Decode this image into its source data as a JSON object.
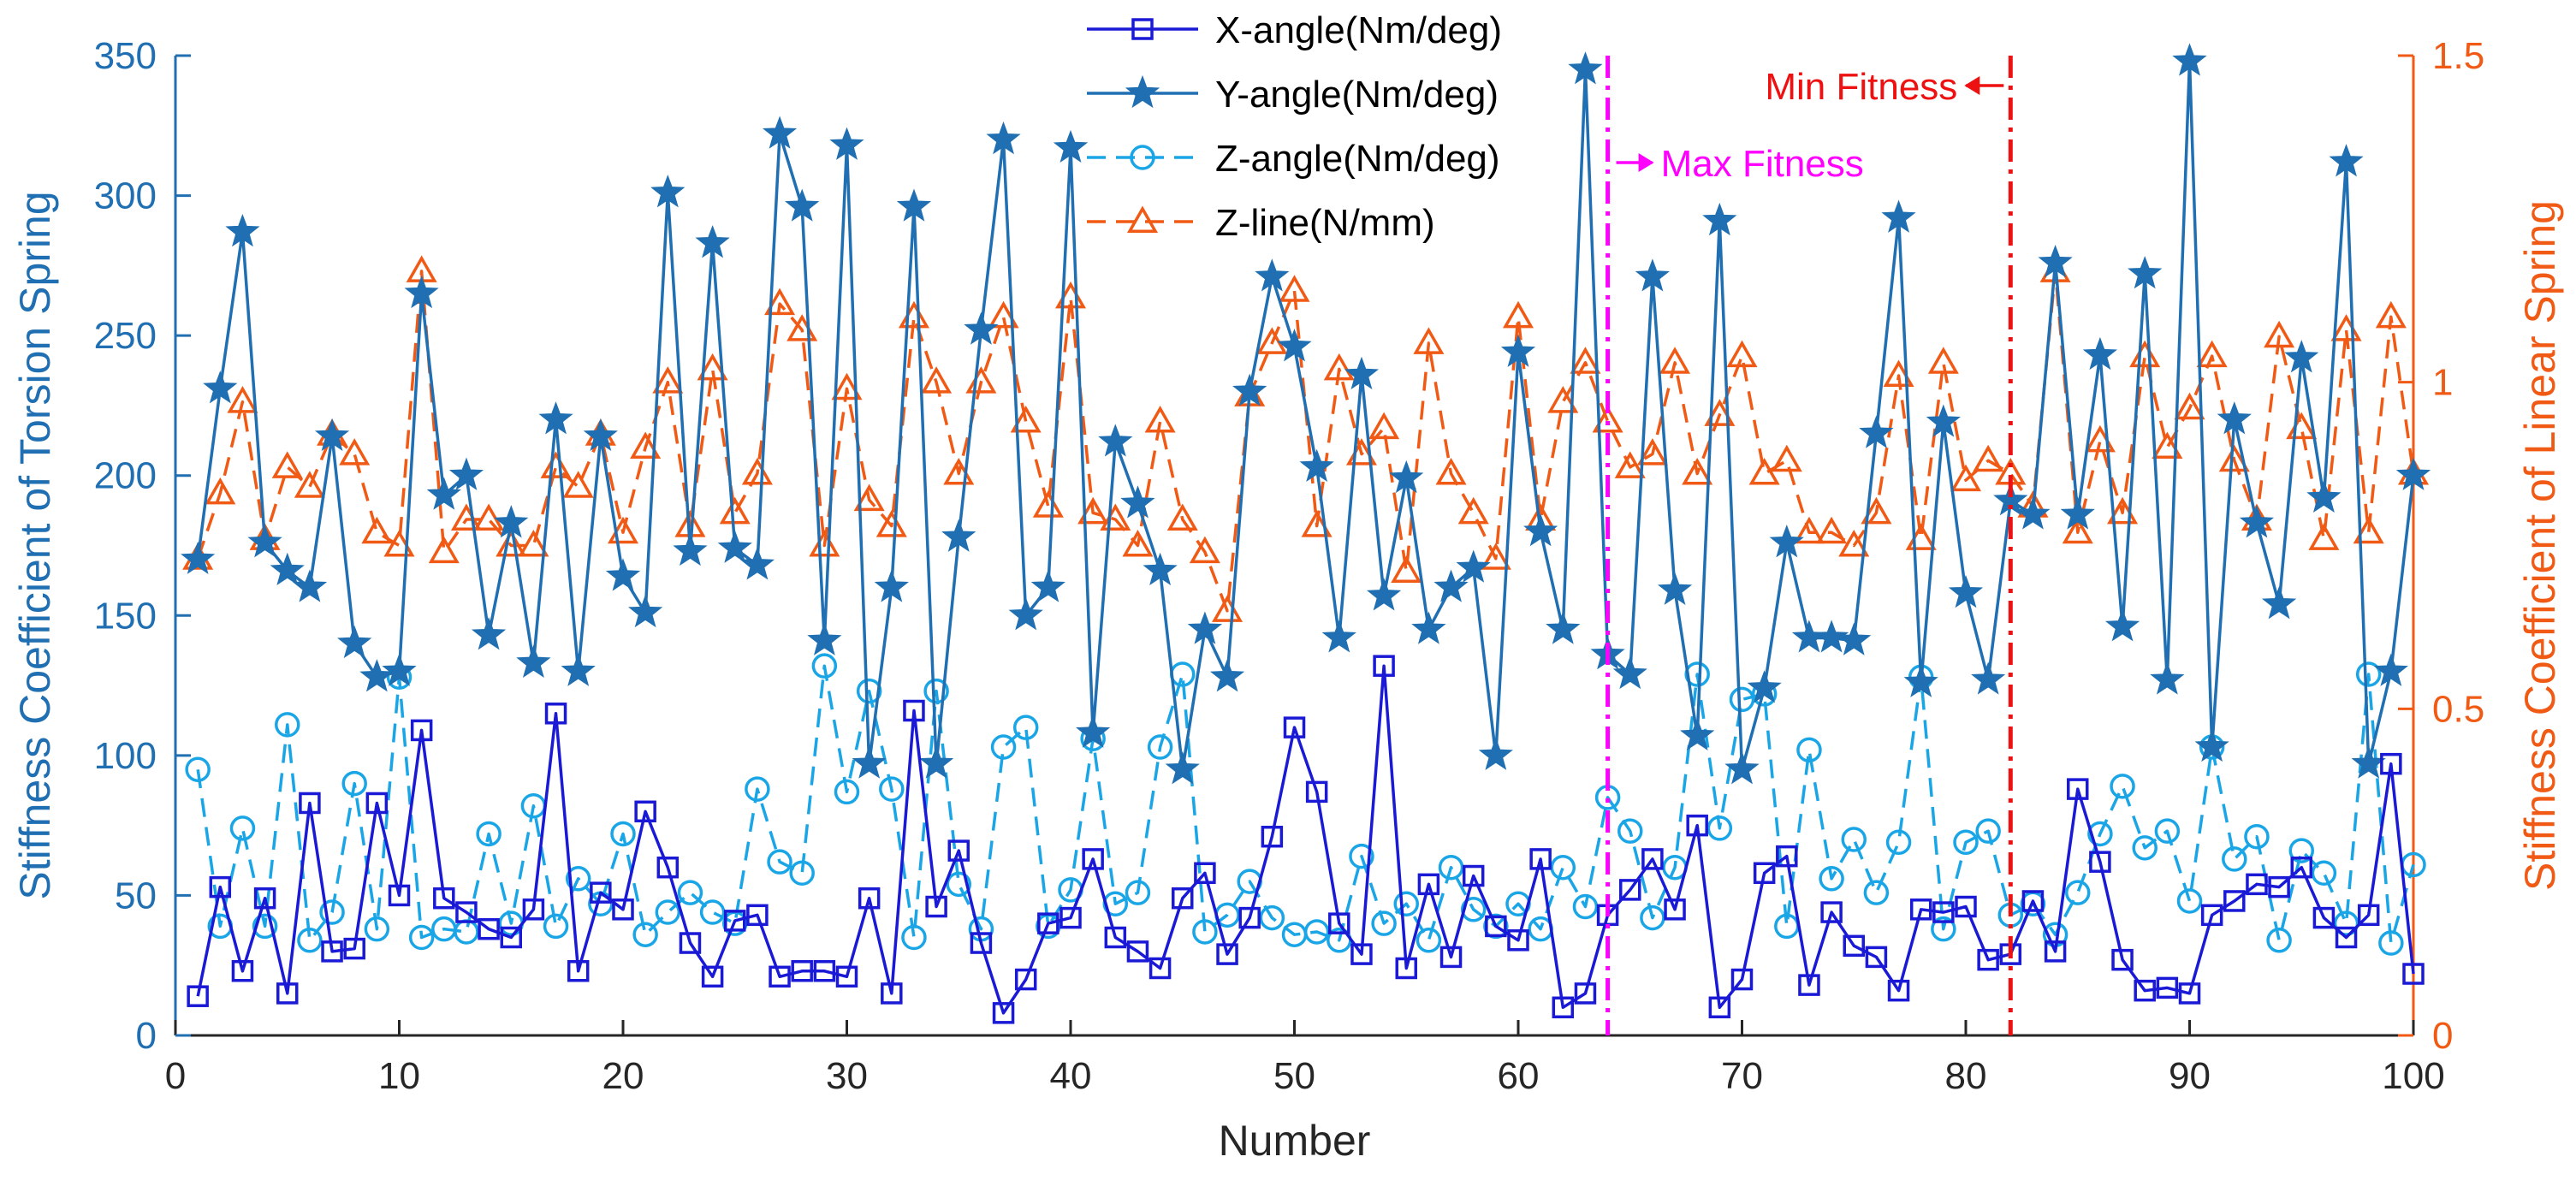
{
  "chart_data": {
    "type": "line",
    "xlabel": "Number",
    "ylabel_left": "Stiffness Coefficient of Torsion Spring",
    "ylabel_right": "Stiffness Coefficient of Linear Spring",
    "xlim": [
      0,
      100
    ],
    "ylim_left": [
      0,
      350
    ],
    "ylim_right": [
      0,
      1.5
    ],
    "x_ticks": [
      0,
      10,
      20,
      30,
      40,
      50,
      60,
      70,
      80,
      90,
      100
    ],
    "y_left_ticks": [
      0,
      50,
      100,
      150,
      200,
      250,
      300,
      350
    ],
    "y_right_ticks": [
      0,
      0.5,
      1,
      1.5
    ],
    "grid": false,
    "legend_position": "top-center",
    "colors": {
      "x_angle": "#1a1ad6",
      "y_angle": "#1f6fb2",
      "z_angle": "#1aa6e6",
      "z_line": "#f05a14",
      "max_fitness": "#ff00ff",
      "min_fitness": "#ee1111",
      "left_axis": "#1f6fb2",
      "right_axis": "#f05a14"
    },
    "x": [
      1,
      2,
      3,
      4,
      5,
      6,
      7,
      8,
      9,
      10,
      11,
      12,
      13,
      14,
      15,
      16,
      17,
      18,
      19,
      20,
      21,
      22,
      23,
      24,
      25,
      26,
      27,
      28,
      29,
      30,
      31,
      32,
      33,
      34,
      35,
      36,
      37,
      38,
      39,
      40,
      41,
      42,
      43,
      44,
      45,
      46,
      47,
      48,
      49,
      50,
      51,
      52,
      53,
      54,
      55,
      56,
      57,
      58,
      59,
      60,
      61,
      62,
      63,
      64,
      65,
      66,
      67,
      68,
      69,
      70,
      71,
      72,
      73,
      74,
      75,
      76,
      77,
      78,
      79,
      80,
      81,
      82,
      83,
      84,
      85,
      86,
      87,
      88,
      89,
      90,
      91,
      92,
      93,
      94,
      95,
      96,
      97,
      98,
      99,
      100
    ],
    "series": [
      {
        "name": "X-angle(Nm/deg)",
        "axis": "left",
        "marker": "square",
        "style": "solid",
        "values": [
          14,
          53,
          23,
          49,
          15,
          83,
          30,
          31,
          83,
          50,
          109,
          49,
          44,
          38,
          35,
          45,
          115,
          23,
          51,
          45,
          80,
          60,
          33,
          21,
          41,
          43,
          21,
          23,
          23,
          21,
          49,
          15,
          116,
          46,
          66,
          33,
          8,
          20,
          40,
          42,
          63,
          35,
          30,
          24,
          49,
          58,
          29,
          42,
          71,
          110,
          87,
          40,
          29,
          132,
          24,
          54,
          28,
          57,
          39,
          34,
          63,
          10,
          15,
          43,
          52,
          63,
          45,
          75,
          10,
          20,
          58,
          64,
          18,
          44,
          32,
          28,
          16,
          45,
          44,
          46,
          27,
          29,
          48,
          30,
          88,
          62,
          27,
          16,
          17,
          15,
          43,
          48,
          54,
          53,
          60,
          42,
          35,
          43,
          97,
          22
        ]
      },
      {
        "name": "Y-angle(Nm/deg)",
        "axis": "left",
        "marker": "star",
        "style": "solid",
        "values": [
          170,
          231,
          287,
          176,
          166,
          160,
          214,
          140,
          128,
          130,
          265,
          193,
          200,
          143,
          183,
          133,
          220,
          130,
          214,
          164,
          151,
          301,
          173,
          283,
          174,
          168,
          322,
          296,
          141,
          318,
          97,
          160,
          296,
          97,
          178,
          252,
          320,
          150,
          160,
          317,
          108,
          212,
          190,
          166,
          95,
          145,
          128,
          230,
          271,
          246,
          203,
          142,
          236,
          157,
          199,
          145,
          160,
          167,
          100,
          244,
          180,
          145,
          345,
          136,
          129,
          271,
          159,
          107,
          291,
          95,
          124,
          176,
          142,
          142,
          141,
          215,
          292,
          126,
          219,
          158,
          127,
          191,
          186,
          276,
          186,
          243,
          146,
          272,
          127,
          348,
          103,
          220,
          183,
          154,
          242,
          192,
          312,
          97,
          130,
          200
        ]
      },
      {
        "name": "Z-angle(Nm/deg)",
        "axis": "left",
        "marker": "circle",
        "style": "dashed",
        "values": [
          95,
          39,
          74,
          39,
          111,
          34,
          44,
          90,
          38,
          128,
          35,
          38,
          37,
          72,
          40,
          82,
          39,
          56,
          47,
          72,
          36,
          44,
          51,
          44,
          40,
          88,
          62,
          58,
          132,
          87,
          123,
          88,
          35,
          123,
          54,
          38,
          103,
          110,
          39,
          52,
          106,
          47,
          51,
          103,
          129,
          37,
          43,
          55,
          42,
          36,
          37,
          34,
          64,
          40,
          47,
          34,
          60,
          45,
          39,
          47,
          38,
          60,
          46,
          85,
          73,
          42,
          60,
          129,
          74,
          120,
          122,
          39,
          102,
          56,
          70,
          51,
          69,
          128,
          38,
          69,
          73,
          43,
          47,
          36,
          51,
          72,
          89,
          67,
          73,
          48,
          103,
          63,
          71,
          34,
          66,
          58,
          40,
          129,
          33,
          61
        ]
      },
      {
        "name": "Z-line(N/mm)",
        "axis": "right",
        "marker": "triangle",
        "style": "dashed",
        "values": [
          0.73,
          0.83,
          0.97,
          0.76,
          0.87,
          0.84,
          0.92,
          0.89,
          0.77,
          0.75,
          1.17,
          0.74,
          0.79,
          0.79,
          0.75,
          0.75,
          0.87,
          0.84,
          0.92,
          0.77,
          0.9,
          1.0,
          0.78,
          1.02,
          0.8,
          0.86,
          1.12,
          1.08,
          0.75,
          0.99,
          0.82,
          0.78,
          1.1,
          1.0,
          0.86,
          1.0,
          1.1,
          0.94,
          0.81,
          1.13,
          0.8,
          0.79,
          0.75,
          0.94,
          0.79,
          0.74,
          0.65,
          0.98,
          1.06,
          1.14,
          0.78,
          1.02,
          0.89,
          0.93,
          0.71,
          1.06,
          0.86,
          0.8,
          0.73,
          1.1,
          0.79,
          0.97,
          1.03,
          0.94,
          0.87,
          0.89,
          1.03,
          0.86,
          0.95,
          1.04,
          0.86,
          0.88,
          0.77,
          0.77,
          0.75,
          0.8,
          1.01,
          0.76,
          1.03,
          0.85,
          0.88,
          0.86,
          0.81,
          1.17,
          0.77,
          0.91,
          0.8,
          1.04,
          0.9,
          0.96,
          1.04,
          0.88,
          0.79,
          1.07,
          0.93,
          0.76,
          1.08,
          0.77,
          1.1,
          0.86
        ]
      }
    ],
    "annotations": [
      {
        "label": "Max Fitness",
        "x": 64,
        "color": "#ff00ff",
        "style": "dash-dot",
        "arrow": "right"
      },
      {
        "label": "Min Fitness",
        "x": 82,
        "color": "#ee1111",
        "style": "dash-dot",
        "arrow": "left"
      }
    ]
  }
}
